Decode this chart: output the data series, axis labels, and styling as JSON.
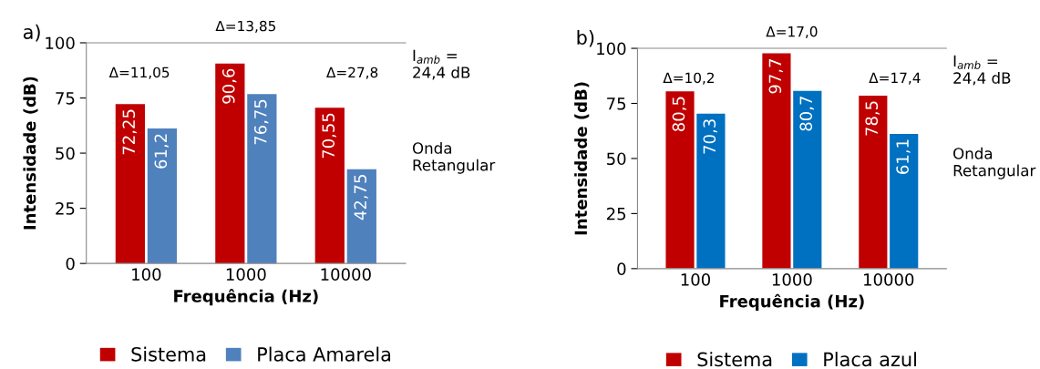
{
  "chart_data": [
    {
      "type": "bar",
      "title": "a)",
      "xlabel": "Frequência (Hz)",
      "ylabel": "Intensidade (dB)",
      "categories": [
        "100",
        "1000",
        "10000"
      ],
      "series": [
        {
          "name": "Sistema",
          "color": "#c00000",
          "values": [
            72.25,
            90.6,
            70.55
          ],
          "value_labels": [
            "72,25",
            "90,6",
            "70,55"
          ]
        },
        {
          "name": "Placa Amarela",
          "color": "#4f81bd",
          "values": [
            61.2,
            76.75,
            42.75
          ],
          "value_labels": [
            "61,2",
            "76,75",
            "42,75"
          ]
        }
      ],
      "ylim": [
        0,
        100
      ],
      "yticks": [
        0,
        25,
        50,
        75,
        100
      ],
      "grid": false,
      "legend": "bottom",
      "annotations": [
        "Δ=11,05",
        "Δ=13,85",
        "Δ=27,8",
        "I$_{amb}$ =\n24,4 dB",
        "Onda\nRetangular"
      ]
    },
    {
      "type": "bar",
      "title": "b)",
      "xlabel": "Frequência (Hz)",
      "ylabel": "Intensidade (dB)",
      "categories": [
        "100",
        "1000",
        "10000"
      ],
      "series": [
        {
          "name": "Sistema",
          "color": "#c00000",
          "values": [
            80.5,
            97.7,
            78.5
          ],
          "value_labels": [
            "80,5",
            "97,7",
            "78,5"
          ]
        },
        {
          "name": "Placa azul",
          "color": "#0070c0",
          "values": [
            70.3,
            80.7,
            61.1
          ],
          "value_labels": [
            "70,3",
            "80,7",
            "61,1"
          ]
        }
      ],
      "ylim": [
        0,
        100
      ],
      "yticks": [
        0,
        25,
        50,
        75,
        100
      ],
      "grid": false,
      "legend": "bottom",
      "annotations": [
        "Δ=10,2",
        "Δ=17,0",
        "Δ=17,4",
        "I$_{amb}$ =\n24,4 dB",
        "Onda\nRetangular"
      ]
    }
  ]
}
